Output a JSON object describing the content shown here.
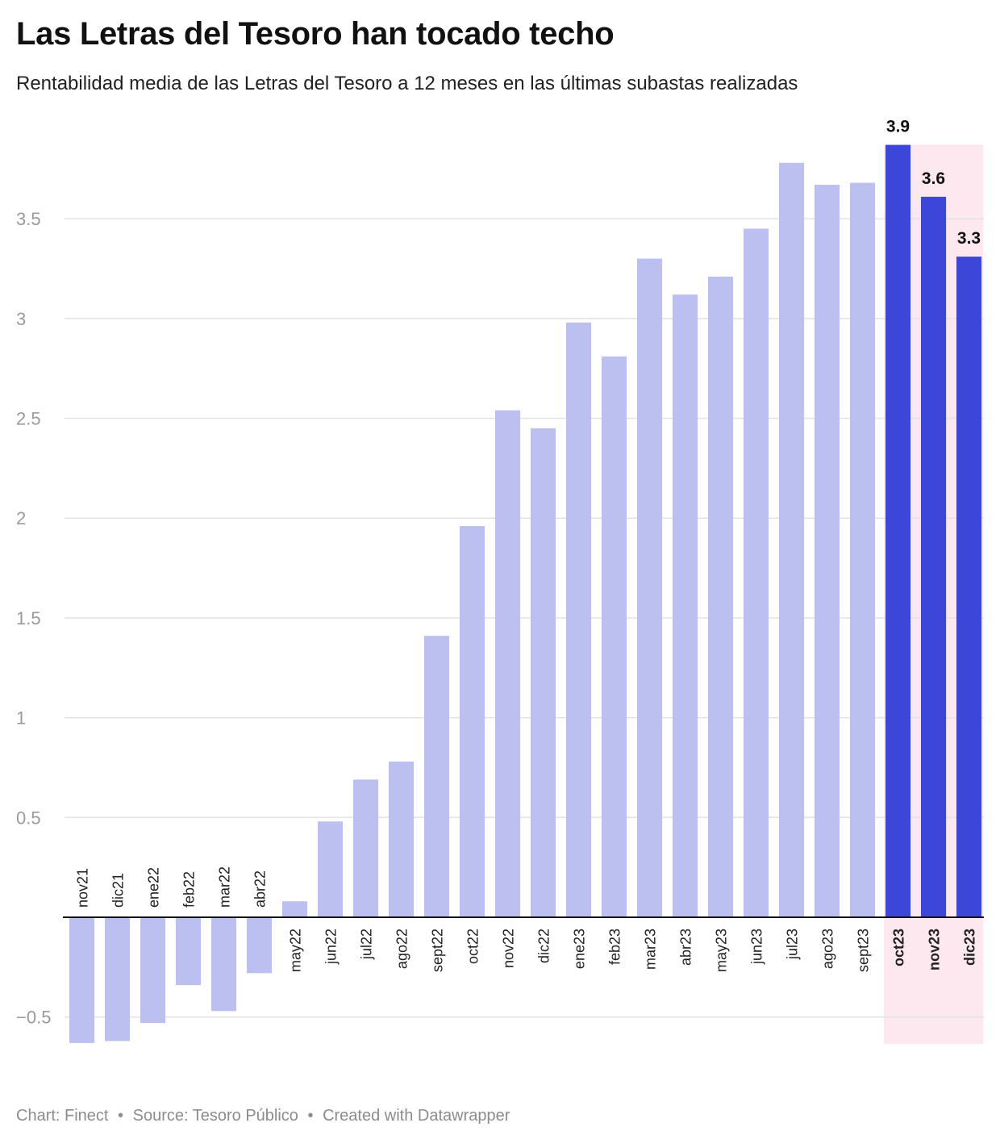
{
  "title": "Las Letras del Tesoro han tocado techo",
  "subtitle": "Rentabilidad media de las Letras del Tesoro a 12 meses en las últimas subastas realizadas",
  "footer": {
    "chart": "Chart: Finect",
    "source": "Source: Tesoro Público",
    "created": "Created with Datawrapper",
    "separator": "•"
  },
  "colors": {
    "bar": "#bcc0f0",
    "bar_highlight": "#3c46d8",
    "highlight_band": "#fde8f0",
    "grid": "#e2e2e2",
    "axis": "#111111",
    "tick_label": "#9a9a9a"
  },
  "chart_data": {
    "type": "bar",
    "title": "Las Letras del Tesoro han tocado techo",
    "xlabel": "",
    "ylabel": "",
    "ylim": [
      -0.7,
      3.95
    ],
    "yticks": [
      -0.5,
      0.5,
      1,
      1.5,
      2,
      2.5,
      3,
      3.5
    ],
    "ytick_labels": [
      "−0.5",
      "0.5",
      "1",
      "1.5",
      "2",
      "2.5",
      "3",
      "3.5"
    ],
    "categories": [
      "nov21",
      "dic21",
      "ene22",
      "feb22",
      "mar22",
      "abr22",
      "may22",
      "jun22",
      "jul22",
      "ago22",
      "sept22",
      "oct22",
      "nov22",
      "dic22",
      "ene23",
      "feb23",
      "mar23",
      "abr23",
      "may23",
      "jun23",
      "jul23",
      "ago23",
      "sept23",
      "oct23",
      "nov23",
      "dic23"
    ],
    "values": [
      -0.63,
      -0.62,
      -0.53,
      -0.34,
      -0.47,
      -0.28,
      0.08,
      0.48,
      0.69,
      0.78,
      1.41,
      1.96,
      2.54,
      2.45,
      2.98,
      2.81,
      3.3,
      3.12,
      3.21,
      3.45,
      3.78,
      3.67,
      3.68,
      3.87,
      3.61,
      3.31
    ],
    "highlighted": [
      "oct23",
      "nov23",
      "dic23"
    ],
    "data_labels": [
      {
        "category": "oct23",
        "label": "3.9"
      },
      {
        "category": "nov23",
        "label": "3.6"
      },
      {
        "category": "dic23",
        "label": "3.3"
      }
    ],
    "grid": true,
    "legend": "none"
  }
}
